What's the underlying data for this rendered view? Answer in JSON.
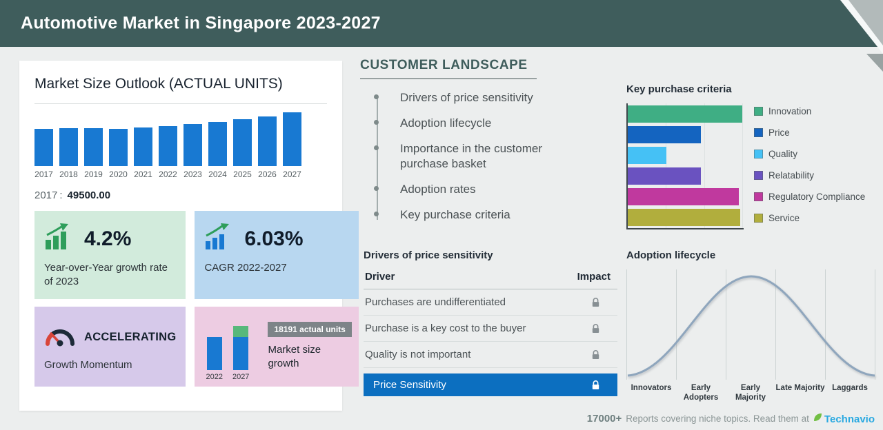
{
  "colors": {
    "page_bg": "#eceeee",
    "header_bg": "#3f5d5c",
    "heading_teal": "#3f5d5c",
    "bar_blue": "#1879d2",
    "card_green_bg": "#d2ebdc",
    "card_blue_bg": "#b8d7f0",
    "card_purple_bg": "#d6c9ea",
    "card_pink_bg": "#edcce2",
    "icon_green": "#2e9e5b",
    "growth_green": "#57b87b",
    "badge_gray": "#7d8488",
    "highlight_blue": "#0c6fc0",
    "curve_color": "#8fa6bd",
    "brand_blue": "#29a9e1",
    "leaf_green": "#72bf44"
  },
  "header": {
    "title": "Automotive Market in Singapore 2023-2027"
  },
  "market_size": {
    "title": "Market Size Outlook (ACTUAL UNITS)",
    "base": {
      "year": "2017",
      "sep": ":",
      "value": "49500.00"
    },
    "cards": {
      "yoy": {
        "value": "4.2%",
        "label": "Year-over-Year growth rate of 2023"
      },
      "cagr": {
        "value": "6.03%",
        "label": "CAGR 2022-2027"
      },
      "momentum": {
        "value": "ACCELERATING",
        "label": "Growth Momentum"
      },
      "growth": {
        "badge": "18191 actual units",
        "label": "Market size growth"
      }
    }
  },
  "customer_landscape": {
    "title": "CUSTOMER LANDSCAPE",
    "items": [
      "Drivers of price sensitivity",
      "Adoption lifecycle",
      "Importance in the customer purchase basket",
      "Adoption rates",
      "Key purchase criteria"
    ]
  },
  "key_purchase_criteria": {
    "title": "Key purchase criteria"
  },
  "price_sensitivity": {
    "title": "Drivers of price sensitivity",
    "columns": [
      "Driver",
      "Impact"
    ],
    "rows": [
      "Purchases are undifferentiated",
      "Purchase is a key cost to the buyer",
      "Quality is not important"
    ],
    "highlight_row": "Price Sensitivity"
  },
  "adoption_lifecycle": {
    "title": "Adoption lifecycle"
  },
  "footer": {
    "count": "17000+",
    "text": "Reports covering niche topics. Read them at",
    "brand": "Technavio"
  },
  "chart_data": [
    {
      "id": "market_size",
      "type": "bar",
      "title": "Market Size Outlook (ACTUAL UNITS)",
      "categories": [
        "2017",
        "2018",
        "2019",
        "2020",
        "2021",
        "2022",
        "2023",
        "2024",
        "2025",
        "2026",
        "2027"
      ],
      "values": [
        49500,
        50100,
        50900,
        49400,
        51300,
        53500,
        55750,
        59100,
        62700,
        66500,
        71691
      ],
      "ylabel": "actual units",
      "annotation": "2017 : 49500.00",
      "notes": "values after 2017 estimated from bar heights; 4.2% YoY growth in 2023; CAGR 6.03% 2022-2027"
    },
    {
      "id": "key_purchase_criteria",
      "type": "bar",
      "orientation": "horizontal",
      "title": "Key purchase criteria",
      "categories": [
        "Innovation",
        "Price",
        "Quality",
        "Relatability",
        "Regulatory Compliance",
        "Service"
      ],
      "values": [
        100,
        64,
        34,
        64,
        97,
        98
      ],
      "value_scale": "relative, max = 100 (no axis labels shown)",
      "colors": [
        "#3fae84",
        "#1464c0",
        "#45c1f5",
        "#6a52c0",
        "#c0399e",
        "#b1ae3d"
      ],
      "legend_position": "right"
    },
    {
      "id": "adoption_lifecycle",
      "type": "area",
      "title": "Adoption lifecycle",
      "shape": "bell curve (normal distribution), no numeric axes",
      "categories": [
        "Innovators",
        "Early Adopters",
        "Early Majority",
        "Late Majority",
        "Laggards"
      ]
    },
    {
      "id": "market_size_growth",
      "type": "bar",
      "title": "Market size growth",
      "categories": [
        "2022",
        "2027"
      ],
      "values": [
        53500,
        71691
      ],
      "annotation": "18191 actual units"
    }
  ]
}
